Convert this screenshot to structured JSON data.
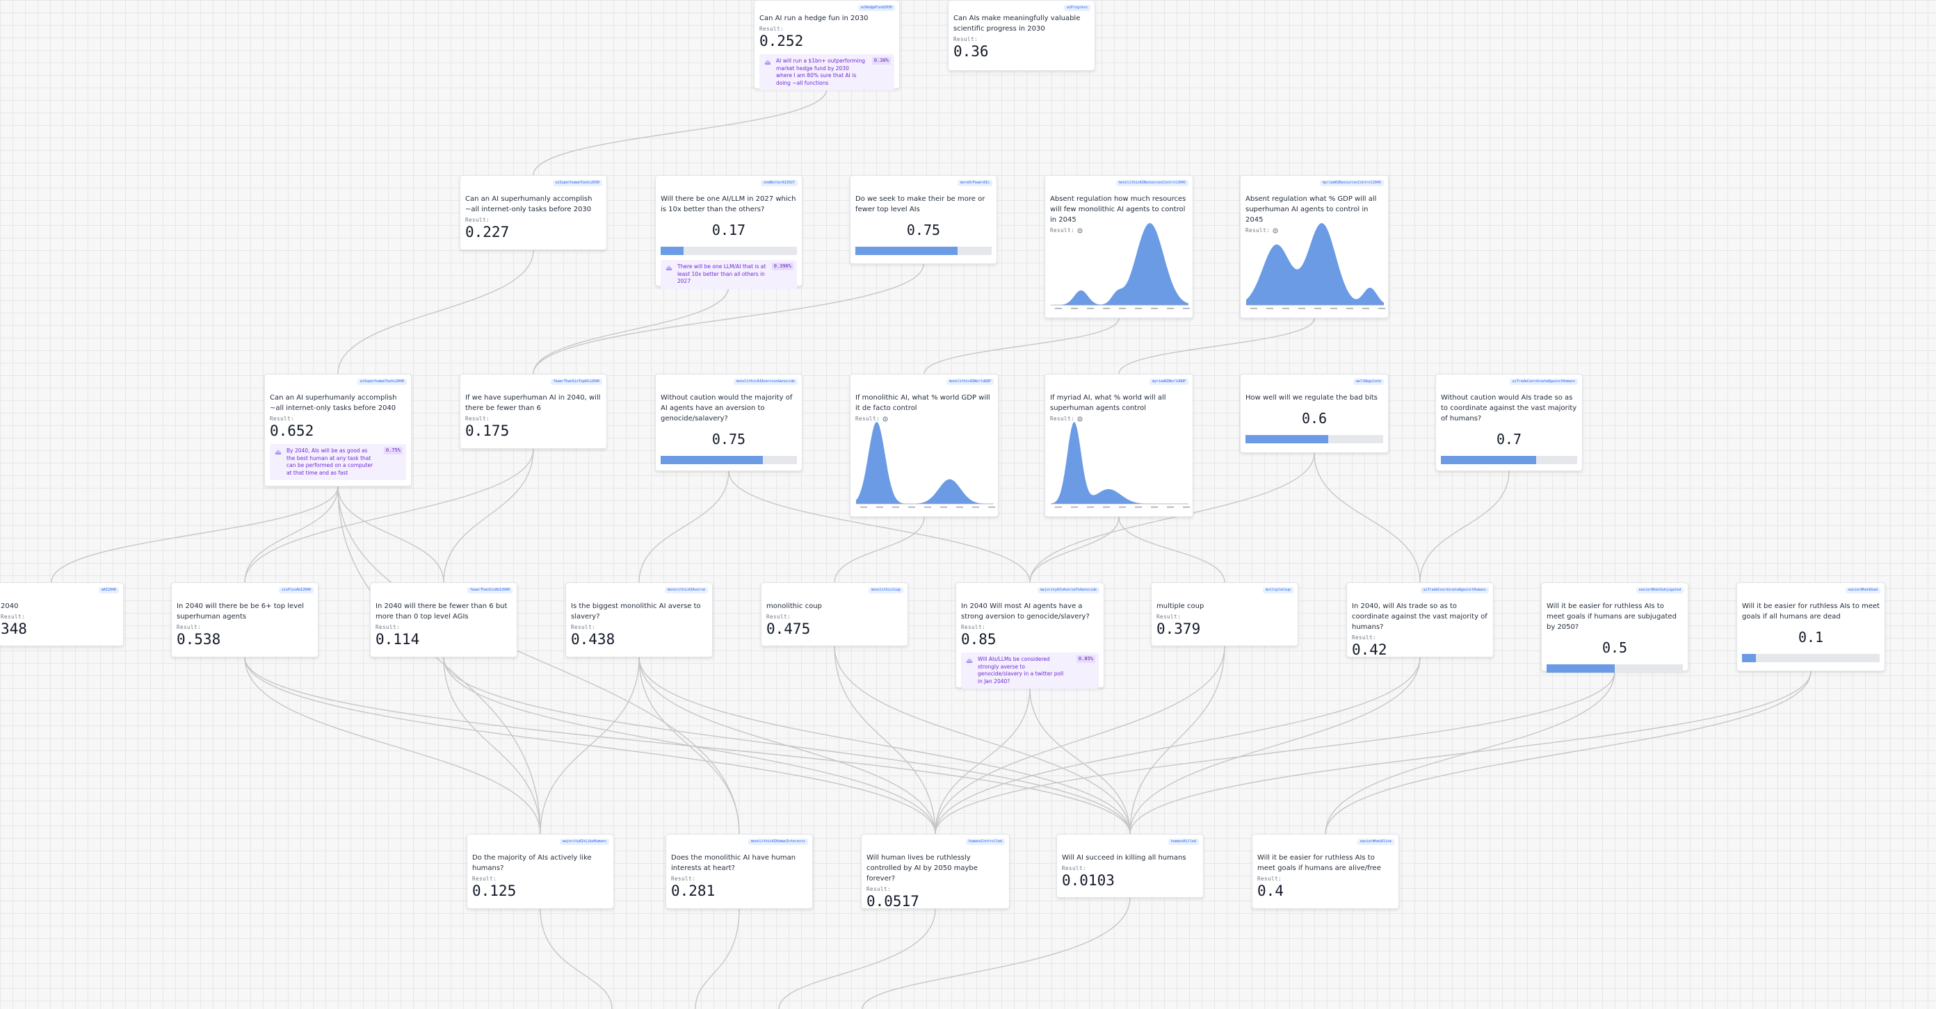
{
  "canvas": {
    "grid": "on",
    "edge_color": "#c6c6c6"
  },
  "colors": {
    "accent": "#6b9be4",
    "distribution": "#6b9be4",
    "forecast_bg": "#f5f0fd",
    "forecast_text": "#6d28d9",
    "id_text": "#2563eb"
  },
  "result_label": "Result:",
  "nodes": [
    {
      "key": "hedge",
      "id": "aiHedgeFund2030",
      "question": "Can AI run a hedge fun in 2030",
      "value": "0.252",
      "forecast": {
        "text": "AI will run a $1bn+ outperforming market hedge fund by 2030 where I am 80% sure that AI is doing ~all functions",
        "prob": "0.30%"
      }
    },
    {
      "key": "science",
      "id": "aiProgress",
      "question": "Can AIs make meaningfully valuable scientific progress in 2030",
      "value": "0.36"
    },
    {
      "key": "sh2030",
      "id": "aiSuperhumanTasks2030",
      "question": "Can an AI superhumanly accomplish ~all internet-only tasks before 2030",
      "value": "0.227"
    },
    {
      "key": "oneai",
      "id": "oneBetterAI2027",
      "question": "Will there be one AI/LLM in 2027 which is 10x better than the others?",
      "value": "0.17",
      "fraction": 0.17,
      "forecast": {
        "text": "There will be one LLM/AI that is at least 10x better than all others in 2027",
        "prob": "0.390%"
      }
    },
    {
      "key": "seek",
      "id": "moreOrFewerAIs",
      "question": "Do we seek to make their be more or fewer top level AIs",
      "value": "0.75",
      "fraction": 0.75
    },
    {
      "key": "mono2045",
      "id": "monolithicAIResourcesControl2045",
      "question": "Absent regulation how much resources will few monolithic AI agents to control in 2045",
      "dist_mode": "late"
    },
    {
      "key": "myriad2045",
      "id": "myriadAIResourcesControl2045",
      "question": "Absent regulation what % GDP will all superhuman AI agents to control in 2045",
      "dist_mode": "bimodal"
    },
    {
      "key": "sh2040",
      "id": "aiSuperhumanTasks2040",
      "question": "Can an AI superhumanly accomplish ~all internet-only tasks before 2040",
      "value": "0.652",
      "forecast": {
        "text": "By 2040, AIs will be as good as the best human at any task that can be performed on a computer at that time and as fast",
        "prob": "0.75%"
      }
    },
    {
      "key": "fewer6",
      "id": "fewerThanSixTopAIs2040",
      "question": "If we have superhuman AI in 2040, will there be fewer than 6",
      "value": "0.175"
    },
    {
      "key": "aversion",
      "id": "monolithicAIAversionGenocide",
      "question": "Without caution would the majority of AI agents have an aversion to genocide/salavery?",
      "value": "0.75",
      "fraction": 0.75
    },
    {
      "key": "monogdp",
      "id": "monolithicAIWorldGDP",
      "question": "If monolithic AI, what % world GDP will it de facto control",
      "dist_mode": "early"
    },
    {
      "key": "myriadgdp",
      "id": "myriadAIWorldGDP",
      "question": "If myriad AI, what % world will all superhuman agents control",
      "dist_mode": "spike"
    },
    {
      "key": "regulate",
      "id": "wellRegulate",
      "question": "How well will we regulate the bad bits",
      "value": "0.6",
      "fraction": 0.6
    },
    {
      "key": "trade",
      "id": "aiTradeCoordinateAgainstHumans",
      "question": "Without caution would AIs trade so as to coordinate against the vast majority of humans?",
      "value": "0.7",
      "fraction": 0.7
    },
    {
      "key": "edge2040",
      "id": "mAI2040",
      "question": "2040",
      "value": "348"
    },
    {
      "key": "six",
      "id": "sixPlusAGI2040",
      "question": "In 2040 will there be be 6+ top level superhuman agents",
      "value": "0.538"
    },
    {
      "key": "fewer6b",
      "id": "fewerThanSixAGI2040",
      "question": "In 2040 will there be fewer than 6 but more than 0 top level AGIs",
      "value": "0.114"
    },
    {
      "key": "biggest",
      "id": "monolithicAIAverse",
      "question": "Is the biggest monolithic AI averse to slavery?",
      "value": "0.438"
    },
    {
      "key": "monocoup",
      "id": "monolithicCoup",
      "question": "monolithic coup",
      "value": "0.475"
    },
    {
      "key": "most",
      "id": "majorityAIsAverseToGenocide",
      "question": "In 2040 Will most AI agents have a strong aversion to genocide/slavery?",
      "value": "0.85",
      "forecast": {
        "text": "Will AIs/LLMs be considered strongly averse to genocide/slavery in a twitter poll in Jan 2040?",
        "prob": "0.85%"
      }
    },
    {
      "key": "multicoup",
      "id": "multipleCoup",
      "question": "multiple coup",
      "value": "0.379"
    },
    {
      "key": "trade2040",
      "id": "aiTradeCoordinateAgainstHumans",
      "question": "In 2040, will AIs trade so as to coordinate against the vast majority of humans?",
      "value": "0.42"
    },
    {
      "key": "easier1",
      "id": "easierWhenSubjugated",
      "question": "Will it be easier for ruthless AIs to meet goals if humans are subjugated by 2050?",
      "value": "0.5",
      "fraction": 0.5
    },
    {
      "key": "easier2",
      "id": "easierWhenDead",
      "question": "Will it be easier for ruthless AIs to meet goals if all humans are dead",
      "value": "0.1",
      "fraction": 0.1
    },
    {
      "key": "like",
      "id": "majorityAIsLikeHumans",
      "question": "Do the majority of AIs actively like humans?",
      "value": "0.125"
    },
    {
      "key": "heart",
      "id": "monolithicAIHumanInterests",
      "question": "Does the monolithic AI have human interests at heart?",
      "value": "0.281"
    },
    {
      "key": "ruthless",
      "id": "humansControlled",
      "question": "Will human lives be ruthlessly controlled by AI by 2050 maybe forever?",
      "value": "0.0517"
    },
    {
      "key": "killing",
      "id": "humansKilled",
      "question": "Will AI succeed in killing all humans",
      "value": "0.0103"
    },
    {
      "key": "alive",
      "id": "easierWhenAlive",
      "question": "Will it be easier for ruthless AIs to meet goals if humans are alive/free",
      "value": "0.4"
    }
  ]
}
